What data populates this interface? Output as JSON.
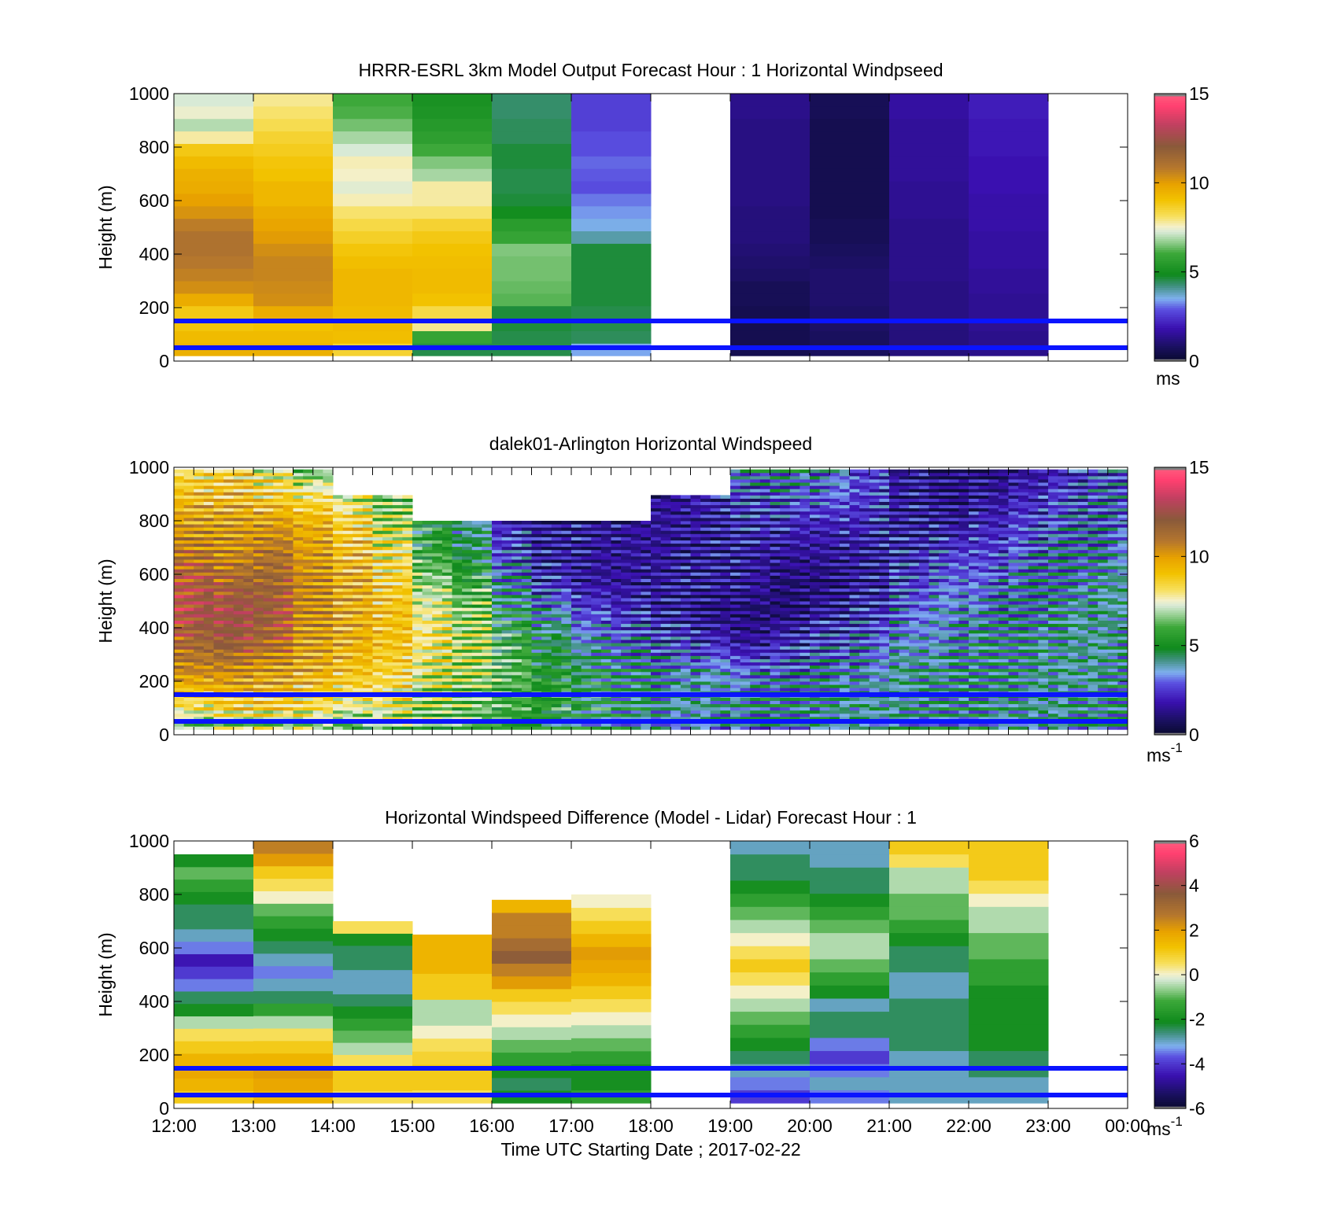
{
  "chart_data": [
    {
      "type": "heatmap",
      "title": "HRRR-ESRL 3km Model Output   Forecast Hour : 1 Horizontal Windpseed",
      "ylabel": "Height (m)",
      "xlabel": "",
      "x_ticks": [
        "12:00",
        "13:00",
        "14:00",
        "15:00",
        "16:00",
        "17:00",
        "18:00",
        "19:00",
        "20:00",
        "21:00",
        "22:00",
        "23:00",
        "00:00"
      ],
      "show_x_tick_labels": false,
      "y_ticks": [
        "0",
        "200",
        "400",
        "600",
        "800",
        "1000"
      ],
      "ylim": [
        0,
        1000
      ],
      "colorbar": {
        "ticks": [
          "0",
          "5",
          "10",
          "15"
        ],
        "range": [
          0,
          15
        ],
        "unit": "ms",
        "unit_sup": "",
        "scale": "speed"
      },
      "reference_lines_m": [
        50,
        150
      ],
      "row_mode": "model",
      "columns": [
        {
          "hour": 0,
          "values": [
            9.5,
            9.2,
            8.9,
            8.8,
            9.6,
            10.3,
            10.6,
            10.8,
            11.0,
            11.0,
            10.7,
            10.2,
            9.9,
            9.6,
            9.5,
            9.2,
            8.8,
            7.7,
            6.9,
            7.4,
            7.2
          ]
        },
        {
          "hour": 1,
          "values": [
            9.5,
            9.2,
            9.0,
            9.6,
            10.3,
            10.4,
            10.5,
            10.5,
            10.3,
            10.0,
            9.8,
            9.6,
            9.3,
            9.3,
            9.0,
            8.9,
            8.7,
            8.5,
            8.2,
            8.0,
            7.8
          ]
        },
        {
          "hour": 2,
          "values": [
            8.5,
            9.1,
            9.2,
            9.2,
            9.3,
            9.3,
            9.3,
            9.1,
            8.9,
            8.6,
            8.3,
            8.0,
            7.6,
            7.3,
            7.5,
            7.6,
            7.2,
            6.8,
            6.4,
            6.1,
            6.0
          ]
        },
        {
          "hour": 3,
          "values": [
            4.5,
            5.8,
            7.8,
            8.3,
            9.0,
            9.2,
            9.2,
            9.1,
            9.0,
            8.8,
            8.5,
            8.0,
            7.7,
            7.7,
            6.8,
            6.5,
            6.0,
            5.6,
            5.4,
            5.2,
            5.1
          ]
        },
        {
          "hour": 4,
          "values": [
            4.5,
            4.5,
            4.6,
            4.6,
            6.2,
            6.3,
            6.4,
            6.4,
            6.5,
            5.8,
            5.5,
            4.9,
            4.6,
            4.5,
            4.5,
            4.6,
            4.6,
            4.4,
            4.4,
            4.3,
            4.3
          ]
        },
        {
          "hour": 5,
          "values": [
            3.4,
            4.4,
            4.5,
            4.5,
            4.6,
            4.6,
            4.6,
            4.6,
            4.6,
            3.9,
            3.5,
            3.3,
            3.1,
            2.8,
            2.9,
            3.0,
            2.8,
            2.8,
            2.6,
            2.6,
            2.6
          ]
        },
        {
          "hour": 6,
          "values": []
        },
        {
          "hour": 7,
          "values": [
            0.5,
            0.5,
            0.5,
            0.5,
            0.6,
            0.6,
            0.8,
            0.9,
            1.0,
            1.1,
            1.1,
            1.1,
            1.2,
            1.2,
            1.2,
            1.2,
            1.2,
            1.2,
            1.2,
            1.3,
            1.3
          ]
        },
        {
          "hour": 8,
          "values": [
            0.7,
            0.7,
            0.8,
            0.8,
            0.9,
            0.9,
            0.9,
            0.8,
            0.7,
            0.6,
            0.6,
            0.5,
            0.5,
            0.5,
            0.5,
            0.5,
            0.5,
            0.5,
            0.5,
            0.6,
            0.6
          ]
        },
        {
          "hour": 9,
          "values": [
            1.1,
            1.1,
            1.1,
            1.2,
            1.2,
            1.2,
            1.3,
            1.3,
            1.3,
            1.3,
            1.3,
            1.4,
            1.4,
            1.4,
            1.5,
            1.5,
            1.5,
            1.5,
            1.5,
            1.6,
            1.6
          ]
        },
        {
          "hour": 10,
          "values": [
            1.3,
            1.3,
            1.4,
            1.4,
            1.4,
            1.5,
            1.5,
            1.6,
            1.6,
            1.6,
            1.7,
            1.7,
            1.7,
            1.8,
            1.8,
            1.8,
            1.9,
            1.9,
            1.9,
            2.0,
            2.0
          ]
        },
        {
          "hour": 11,
          "values": []
        },
        {
          "hour": 12,
          "values": []
        }
      ]
    },
    {
      "type": "heatmap",
      "title": "dalek01-Arlington  Horizontal Windspeed",
      "ylabel": "Height (m)",
      "xlabel": "",
      "x_ticks": [
        "12:00",
        "13:00",
        "14:00",
        "15:00",
        "16:00",
        "17:00",
        "18:00",
        "19:00",
        "20:00",
        "21:00",
        "22:00",
        "23:00",
        "00:00"
      ],
      "show_x_tick_labels": false,
      "y_ticks": [
        "0",
        "200",
        "400",
        "600",
        "800",
        "1000"
      ],
      "ylim": [
        0,
        1000
      ],
      "colorbar": {
        "ticks": [
          "0",
          "5",
          "10",
          "15"
        ],
        "range": [
          0,
          15
        ],
        "unit": "ms",
        "unit_sup": "-1",
        "scale": "speed"
      },
      "reference_lines_m": [
        50,
        150
      ],
      "row_mode": "lidar",
      "time_ticks_hours": [
        0,
        0.25,
        0.5,
        0.75,
        1,
        1.25,
        1.5,
        1.75,
        2,
        2.25,
        2.5,
        2.75,
        3,
        3.25,
        3.5,
        3.75,
        4,
        4.25,
        4.5,
        4.75,
        5,
        5.25,
        5.5,
        5.75,
        6,
        6.25,
        6.5,
        6.75,
        7,
        7.25,
        7.5,
        7.75,
        8,
        8.25,
        8.5,
        8.75,
        9,
        9.25,
        9.5,
        9.75,
        10,
        10.25,
        10.5,
        10.75,
        11,
        11.25,
        11.5,
        11.75,
        12
      ],
      "profiles": [
        {
          "hour": 0.0,
          "top_m": 1000,
          "values": [
            6.5,
            8.5,
            10.5,
            11.5,
            12.5,
            12.0,
            11.0,
            10.0,
            9.0,
            8.0
          ]
        },
        {
          "hour": 0.5,
          "top_m": 1000,
          "values": [
            7.0,
            9.0,
            10.5,
            12.0,
            12.5,
            11.5,
            10.5,
            10.0,
            9.0,
            8.5
          ]
        },
        {
          "hour": 1.0,
          "top_m": 1000,
          "values": [
            7.0,
            9.0,
            10.0,
            11.5,
            12.0,
            11.5,
            11.0,
            10.0,
            8.5,
            7.5
          ]
        },
        {
          "hour": 1.5,
          "top_m": 1000,
          "values": [
            7.0,
            8.5,
            9.5,
            10.0,
            10.5,
            10.5,
            10.0,
            9.5,
            8.0,
            6.0
          ]
        },
        {
          "hour": 2.0,
          "top_m": 900,
          "values": [
            6.0,
            8.0,
            9.0,
            9.5,
            9.5,
            9.5,
            9.0,
            8.5,
            7.0
          ]
        },
        {
          "hour": 2.5,
          "top_m": 900,
          "values": [
            6.5,
            8.0,
            8.5,
            9.0,
            9.0,
            8.5,
            8.0,
            7.0,
            6.0
          ]
        },
        {
          "hour": 3.0,
          "top_m": 800,
          "values": [
            6.0,
            7.0,
            7.5,
            8.0,
            7.5,
            6.5,
            5.5,
            5.0
          ]
        },
        {
          "hour": 3.5,
          "top_m": 800,
          "values": [
            6.0,
            6.5,
            7.0,
            7.0,
            6.5,
            5.5,
            4.5,
            4.0
          ]
        },
        {
          "hour": 4.0,
          "top_m": 800,
          "values": [
            5.5,
            6.0,
            6.0,
            5.5,
            4.5,
            3.5,
            2.5,
            2.0
          ]
        },
        {
          "hour": 4.5,
          "top_m": 800,
          "values": [
            5.0,
            5.5,
            5.0,
            4.5,
            3.5,
            2.0,
            1.5,
            1.5
          ]
        },
        {
          "hour": 5.0,
          "top_m": 800,
          "values": [
            4.5,
            5.0,
            4.5,
            3.5,
            2.5,
            1.5,
            1.5,
            1.5
          ]
        },
        {
          "hour": 5.5,
          "top_m": 800,
          "values": [
            4.0,
            4.5,
            4.0,
            3.0,
            2.0,
            1.5,
            1.5,
            1.5
          ]
        },
        {
          "hour": 6.0,
          "top_m": 900,
          "values": [
            3.5,
            4.0,
            3.5,
            2.5,
            1.5,
            1.5,
            1.5,
            1.5,
            1.5
          ]
        },
        {
          "hour": 6.5,
          "top_m": 900,
          "values": [
            3.5,
            4.0,
            3.5,
            2.0,
            1.0,
            1.5,
            1.5,
            1.5,
            2.0
          ]
        },
        {
          "hour": 7.0,
          "top_m": 1000,
          "values": [
            3.5,
            4.0,
            3.0,
            1.5,
            1.0,
            1.5,
            1.5,
            2.0,
            2.5,
            4.0
          ]
        },
        {
          "hour": 7.5,
          "top_m": 1000,
          "values": [
            3.5,
            4.0,
            3.0,
            2.0,
            1.0,
            1.0,
            1.5,
            2.0,
            3.0,
            4.0
          ]
        },
        {
          "hour": 8.0,
          "top_m": 1000,
          "values": [
            4.0,
            4.0,
            3.5,
            2.5,
            1.5,
            1.0,
            1.5,
            2.0,
            3.0,
            3.5
          ]
        },
        {
          "hour": 8.5,
          "top_m": 1000,
          "values": [
            4.0,
            4.0,
            3.5,
            3.0,
            2.0,
            1.5,
            1.5,
            2.0,
            2.5,
            2.5
          ]
        },
        {
          "hour": 9.0,
          "top_m": 1000,
          "values": [
            4.0,
            4.0,
            4.0,
            3.5,
            3.0,
            2.5,
            2.0,
            1.5,
            1.5,
            1.5
          ]
        },
        {
          "hour": 9.5,
          "top_m": 1000,
          "values": [
            4.0,
            4.0,
            4.0,
            3.5,
            3.5,
            3.0,
            2.5,
            1.5,
            1.0,
            1.0
          ]
        },
        {
          "hour": 10.0,
          "top_m": 1000,
          "values": [
            4.0,
            4.0,
            4.0,
            4.0,
            3.5,
            3.0,
            2.5,
            2.0,
            1.5,
            1.0
          ]
        },
        {
          "hour": 10.5,
          "top_m": 1000,
          "values": [
            4.0,
            4.0,
            4.0,
            4.0,
            3.5,
            3.5,
            3.0,
            2.5,
            2.0,
            1.5
          ]
        },
        {
          "hour": 11.0,
          "top_m": 1000,
          "values": [
            4.0,
            4.0,
            4.0,
            4.0,
            4.0,
            3.5,
            3.5,
            3.0,
            2.5,
            2.0
          ]
        },
        {
          "hour": 11.5,
          "top_m": 1000,
          "values": [
            4.0,
            4.0,
            4.0,
            4.0,
            4.0,
            4.0,
            3.5,
            3.0,
            3.0,
            2.5
          ]
        }
      ]
    },
    {
      "type": "heatmap",
      "title": "Horizontal Windspeed Difference (Model - Lidar) Forecast Hour : 1",
      "ylabel": "Height (m)",
      "xlabel": "Time UTC  Starting Date ; 2017-02-22",
      "x_ticks": [
        "12:00",
        "13:00",
        "14:00",
        "15:00",
        "16:00",
        "17:00",
        "18:00",
        "19:00",
        "20:00",
        "21:00",
        "22:00",
        "23:00",
        "00:00"
      ],
      "show_x_tick_labels": true,
      "y_ticks": [
        "0",
        "200",
        "400",
        "600",
        "800",
        "1000"
      ],
      "ylim": [
        0,
        1000
      ],
      "colorbar": {
        "ticks": [
          "-6",
          "-4",
          "-2",
          "0",
          "2",
          "4",
          "6"
        ],
        "range": [
          -6,
          6
        ],
        "unit": "ms",
        "unit_sup": "-1",
        "scale": "diff"
      },
      "reference_lines_m": [
        50,
        150
      ],
      "row_mode": "diff",
      "columns": [
        {
          "hour": 0,
          "top_m": 950,
          "values": [
            1.0,
            1.5,
            1.8,
            1.5,
            1.0,
            0.5,
            -0.5,
            -2.0,
            -2.5,
            -3.5,
            -4.0,
            -4.5,
            -3.5,
            -3.0,
            -2.5,
            -2.5,
            -2.0,
            -1.5,
            -1.0,
            -2.0
          ]
        },
        {
          "hour": 1,
          "top_m": 1000,
          "values": [
            1.5,
            1.8,
            2.0,
            1.5,
            1.0,
            0.5,
            -0.5,
            -1.5,
            -2.5,
            -3.0,
            -3.5,
            -3.0,
            -2.5,
            -2.0,
            -1.5,
            -1.0,
            0.0,
            0.5,
            1.0,
            2.0,
            2.5
          ]
        },
        {
          "hour": 2,
          "top_m": 700,
          "values": [
            0.5,
            1.0,
            1.0,
            0.5,
            -0.5,
            -1.0,
            -1.5,
            -2.0,
            -2.5,
            -3.0,
            -3.0,
            -2.5,
            -2.5,
            -2.0,
            0.5
          ]
        },
        {
          "hour": 3,
          "top_m": 650,
          "values": [
            0.5,
            1.0,
            1.0,
            0.8,
            0.5,
            0.0,
            -0.5,
            -0.5,
            1.0,
            1.0,
            1.5,
            1.5,
            1.5
          ]
        },
        {
          "hour": 4,
          "top_m": 780,
          "values": [
            -2.0,
            -2.5,
            -2.0,
            -1.5,
            -1.0,
            -0.5,
            0.0,
            0.5,
            1.0,
            2.0,
            2.5,
            3.5,
            3.0,
            2.5,
            2.5,
            1.5
          ]
        },
        {
          "hour": 5,
          "top_m": 800,
          "values": [
            -1.5,
            -2.0,
            -2.0,
            -1.5,
            -1.0,
            -0.5,
            0.0,
            0.5,
            1.0,
            1.5,
            1.8,
            2.0,
            1.5,
            1.0,
            0.5,
            0.0
          ]
        },
        {
          "hour": 6,
          "top_m": 0,
          "values": []
        },
        {
          "hour": 7,
          "top_m": 1000,
          "values": [
            -4.0,
            -3.5,
            -3.0,
            -2.5,
            -2.0,
            -1.5,
            -1.0,
            -0.5,
            0.0,
            0.5,
            1.0,
            0.5,
            0.0,
            -0.5,
            -1.0,
            -1.5,
            -2.0,
            -2.5,
            -2.5,
            -3.0
          ]
        },
        {
          "hour": 8,
          "top_m": 1000,
          "values": [
            -3.5,
            -3.0,
            -3.5,
            -4.0,
            -3.5,
            -2.5,
            -2.5,
            -3.0,
            -2.0,
            -1.5,
            -1.0,
            -0.5,
            -0.5,
            -1.0,
            -1.5,
            -2.0,
            -2.5,
            -2.5,
            -3.0,
            -3.0
          ]
        },
        {
          "hour": 9,
          "top_m": 1000,
          "values": [
            -3.0,
            -3.0,
            -3.0,
            -3.0,
            -2.5,
            -2.5,
            -2.5,
            -2.5,
            -3.0,
            -3.0,
            -2.5,
            -2.5,
            -2.0,
            -1.5,
            -1.0,
            -1.0,
            -0.5,
            -0.5,
            0.5,
            1.0
          ]
        },
        {
          "hour": 10,
          "top_m": 1000,
          "values": [
            -3.0,
            -3.0,
            -2.5,
            -2.5,
            -2.0,
            -2.0,
            -2.0,
            -2.0,
            -2.0,
            -1.5,
            -1.5,
            -1.0,
            -1.0,
            -0.5,
            -0.5,
            0.0,
            0.5,
            1.0,
            1.0,
            1.0
          ]
        },
        {
          "hour": 11,
          "top_m": 0,
          "values": []
        }
      ]
    }
  ]
}
